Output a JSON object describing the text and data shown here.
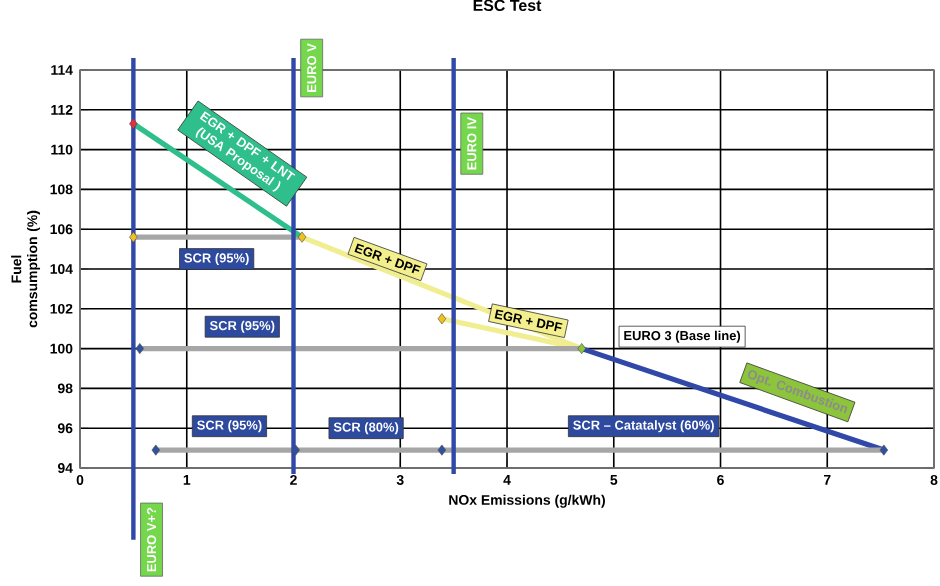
{
  "chart_data": {
    "type": "scatter",
    "title": "ESC Test",
    "xlabel": "NOx Emissions (g/kWh)",
    "ylabel": "Fuel comsumption (%)",
    "xlim": [
      0,
      8
    ],
    "xticks": [
      0,
      1,
      2,
      3,
      4,
      5,
      6,
      7,
      8
    ],
    "ylim": [
      94,
      114
    ],
    "yticks": [
      94,
      96,
      98,
      100,
      102,
      104,
      106,
      108,
      110,
      112,
      114
    ],
    "grid": true,
    "series": [
      {
        "type": "line",
        "color": "#a6a6a6",
        "x": [
          2.08,
          0.5
        ],
        "values": [
          105.6,
          105.6
        ]
      },
      {
        "type": "line",
        "color": "#2fbf8c",
        "x": [
          2.08,
          0.5
        ],
        "values": [
          105.6,
          111.3
        ]
      },
      {
        "type": "line",
        "color": "#f0ee90",
        "x": [
          4.7,
          2.08
        ],
        "values": [
          100,
          105.6
        ]
      },
      {
        "type": "line",
        "color": "#f0ee90",
        "x": [
          4.7,
          3.39
        ],
        "values": [
          100,
          101.5
        ]
      },
      {
        "type": "line",
        "color": "#a6a6a6",
        "x": [
          4.7,
          0.56
        ],
        "values": [
          100,
          100
        ]
      },
      {
        "type": "line",
        "color": "#3048a8",
        "x": [
          4.7,
          7.53
        ],
        "values": [
          100,
          94.9
        ]
      },
      {
        "type": "line",
        "color": "#a6a6a6",
        "x": [
          7.53,
          3.39,
          2.02,
          0.71
        ],
        "values": [
          94.9,
          94.9,
          94.9,
          94.9
        ]
      },
      {
        "marker": "diamond",
        "x": [
          0.5,
          0.5,
          2.08,
          3.39,
          4.7,
          0.56,
          0.71,
          2.02,
          3.39,
          7.53
        ],
        "values": [
          111.3,
          105.6,
          105.6,
          101.5,
          100,
          100,
          94.9,
          94.9,
          94.9,
          94.9
        ],
        "colors": [
          "#e03040",
          "#f0c020",
          "#f0c020",
          "#f0c020",
          "#8cc43c",
          "#3050a0",
          "#3050a0",
          "#3050a0",
          "#3050a0",
          "#3050a0"
        ]
      }
    ],
    "ref_lines": [
      {
        "axis": "x",
        "value": 0.5,
        "label": "EURO V+?",
        "color": "#3048a8"
      },
      {
        "axis": "x",
        "value": 2,
        "label": "EURO V",
        "color": "#3048a8"
      },
      {
        "axis": "x",
        "value": 3.5,
        "label": "EURO IV",
        "color": "#3048a8"
      }
    ],
    "annotations": [
      "EGR + DPF + LNT (USA Proposal )",
      "SCR (95%)",
      "EGR + DPF",
      "EGR + DPF",
      "SCR (95%)",
      "EURO 3 (Base line)",
      "Opt. Combustion",
      "SCR (95%)",
      "SCR (80%)",
      "SCR – Catatalyst (60%)"
    ]
  }
}
